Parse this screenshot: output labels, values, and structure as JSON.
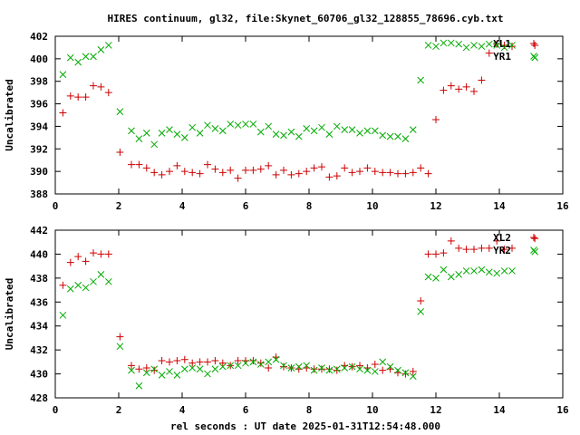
{
  "title": "HIRES continuum, gl32, file:Skynet_60706_gl32_128855_78696.cyb.txt",
  "xlabel": "rel seconds : UT date 2025-01-31T12:54:48.000",
  "colors": {
    "x1": "#cc0000",
    "y1": "#00aa00",
    "axis": "#000000"
  },
  "chart_data": [
    {
      "type": "scatter",
      "ylabel": "Uncalibrated",
      "xlim": [
        0,
        16
      ],
      "ylim": [
        388,
        402
      ],
      "xticks": [
        0,
        2,
        4,
        6,
        8,
        10,
        12,
        14,
        16
      ],
      "yticks": [
        388,
        390,
        392,
        394,
        396,
        398,
        400,
        402
      ],
      "legend_position": "top-right",
      "series": [
        {
          "name": "XL1",
          "marker": "plus",
          "x": [
            0.24,
            0.48,
            0.72,
            0.96,
            1.2,
            1.44,
            1.68,
            2.04,
            2.4,
            2.64,
            2.88,
            3.12,
            3.36,
            3.6,
            3.84,
            4.08,
            4.32,
            4.56,
            4.8,
            5.04,
            5.28,
            5.52,
            5.76,
            6.0,
            6.24,
            6.48,
            6.72,
            6.96,
            7.2,
            7.44,
            7.68,
            7.92,
            8.16,
            8.4,
            8.64,
            8.88,
            9.12,
            9.36,
            9.6,
            9.84,
            10.08,
            10.32,
            10.56,
            10.8,
            11.04,
            11.28,
            11.52,
            11.76,
            12.0,
            12.24,
            12.48,
            12.72,
            12.96,
            13.2,
            13.44,
            13.68,
            13.92,
            14.16,
            14.4,
            15.12
          ],
          "y": [
            395.2,
            396.7,
            396.6,
            396.6,
            397.6,
            397.5,
            397.0,
            391.7,
            390.6,
            390.6,
            390.3,
            389.9,
            389.7,
            390.0,
            390.5,
            390.0,
            389.9,
            389.8,
            390.6,
            390.2,
            389.9,
            390.1,
            389.4,
            390.1,
            390.1,
            390.2,
            390.5,
            389.7,
            390.1,
            389.7,
            389.8,
            390.0,
            390.3,
            390.4,
            389.5,
            389.6,
            390.3,
            389.9,
            390.0,
            390.3,
            390.0,
            389.9,
            389.9,
            389.8,
            389.8,
            389.9,
            390.3,
            389.8,
            394.6,
            397.2,
            397.6,
            397.3,
            397.5,
            397.1,
            398.1,
            400.5,
            401.3,
            401.2,
            401.1,
            401.2
          ]
        },
        {
          "name": "YR1",
          "marker": "cross",
          "x": [
            0.24,
            0.48,
            0.72,
            0.96,
            1.2,
            1.44,
            1.68,
            2.04,
            2.4,
            2.64,
            2.88,
            3.12,
            3.36,
            3.6,
            3.84,
            4.08,
            4.32,
            4.56,
            4.8,
            5.04,
            5.28,
            5.52,
            5.76,
            6.0,
            6.24,
            6.48,
            6.72,
            6.96,
            7.2,
            7.44,
            7.68,
            7.92,
            8.16,
            8.4,
            8.64,
            8.88,
            9.12,
            9.36,
            9.6,
            9.84,
            10.08,
            10.32,
            10.56,
            10.8,
            11.04,
            11.28,
            11.52,
            11.76,
            12.0,
            12.24,
            12.48,
            12.72,
            12.96,
            13.2,
            13.44,
            13.68,
            13.92,
            14.16,
            14.4,
            15.12
          ],
          "y": [
            398.6,
            400.1,
            399.7,
            400.2,
            400.2,
            400.8,
            401.2,
            395.3,
            393.6,
            392.9,
            393.4,
            392.4,
            393.4,
            393.7,
            393.3,
            393.0,
            393.9,
            393.4,
            394.1,
            393.8,
            393.6,
            394.2,
            394.1,
            394.2,
            394.2,
            393.5,
            394.0,
            393.3,
            393.2,
            393.5,
            393.1,
            393.8,
            393.6,
            393.9,
            393.3,
            394.0,
            393.7,
            393.7,
            393.4,
            393.6,
            393.6,
            393.2,
            393.1,
            393.1,
            392.9,
            393.7,
            398.1,
            401.2,
            401.1,
            401.4,
            401.4,
            401.3,
            401.0,
            401.2,
            401.1,
            401.3,
            401.2,
            401.0,
            401.2,
            400.1
          ]
        }
      ]
    },
    {
      "type": "scatter",
      "ylabel": "Uncalibrated",
      "xlim": [
        0,
        16
      ],
      "ylim": [
        428,
        442
      ],
      "xticks": [
        0,
        2,
        4,
        6,
        8,
        10,
        12,
        14,
        16
      ],
      "yticks": [
        428,
        430,
        432,
        434,
        436,
        438,
        440,
        442
      ],
      "legend_position": "top-right",
      "series": [
        {
          "name": "XL2",
          "marker": "plus",
          "x": [
            0.24,
            0.48,
            0.72,
            0.96,
            1.2,
            1.44,
            1.68,
            2.04,
            2.4,
            2.64,
            2.88,
            3.12,
            3.36,
            3.6,
            3.84,
            4.08,
            4.32,
            4.56,
            4.8,
            5.04,
            5.28,
            5.52,
            5.76,
            6.0,
            6.24,
            6.48,
            6.72,
            6.96,
            7.2,
            7.44,
            7.68,
            7.92,
            8.16,
            8.4,
            8.64,
            8.88,
            9.12,
            9.36,
            9.6,
            9.84,
            10.08,
            10.32,
            10.56,
            10.8,
            11.04,
            11.28,
            11.52,
            11.76,
            12.0,
            12.24,
            12.48,
            12.72,
            12.96,
            13.2,
            13.44,
            13.68,
            13.92,
            14.16,
            14.4,
            15.12
          ],
          "y": [
            437.4,
            439.3,
            439.8,
            439.4,
            440.1,
            440.0,
            440.0,
            433.1,
            430.7,
            430.4,
            430.5,
            430.3,
            431.1,
            431.0,
            431.1,
            431.2,
            430.9,
            431.0,
            431.0,
            431.1,
            430.9,
            430.7,
            431.1,
            431.1,
            431.1,
            430.9,
            430.5,
            431.4,
            430.6,
            430.5,
            430.4,
            430.5,
            430.4,
            430.4,
            430.4,
            430.3,
            430.7,
            430.6,
            430.7,
            430.5,
            430.8,
            430.3,
            430.4,
            430.1,
            430.0,
            430.2,
            436.1,
            440.0,
            440.0,
            440.1,
            441.1,
            440.5,
            440.4,
            440.4,
            440.5,
            440.5,
            441.1,
            440.4,
            440.5,
            441.3
          ]
        },
        {
          "name": "YR2",
          "marker": "cross",
          "x": [
            0.24,
            0.48,
            0.72,
            0.96,
            1.2,
            1.44,
            1.68,
            2.04,
            2.4,
            2.64,
            2.88,
            3.12,
            3.36,
            3.6,
            3.84,
            4.08,
            4.32,
            4.56,
            4.8,
            5.04,
            5.28,
            5.52,
            5.76,
            6.0,
            6.24,
            6.48,
            6.72,
            6.96,
            7.2,
            7.44,
            7.68,
            7.92,
            8.16,
            8.4,
            8.64,
            8.88,
            9.12,
            9.36,
            9.6,
            9.84,
            10.08,
            10.32,
            10.56,
            10.8,
            11.04,
            11.28,
            11.52,
            11.76,
            12.0,
            12.24,
            12.48,
            12.72,
            12.96,
            13.2,
            13.44,
            13.68,
            13.92,
            14.16,
            14.4,
            15.12
          ],
          "y": [
            434.9,
            437.1,
            437.4,
            437.2,
            437.7,
            438.3,
            437.7,
            432.3,
            430.3,
            429.0,
            430.1,
            430.4,
            429.9,
            430.2,
            429.9,
            430.4,
            430.5,
            430.4,
            430.0,
            430.4,
            430.6,
            430.7,
            430.7,
            430.9,
            431.0,
            430.8,
            431.0,
            431.2,
            430.7,
            430.5,
            430.6,
            430.7,
            430.3,
            430.5,
            430.3,
            430.4,
            430.5,
            430.6,
            430.4,
            430.3,
            430.2,
            431.0,
            430.6,
            430.3,
            430.1,
            429.8,
            435.2,
            438.1,
            438.0,
            438.7,
            438.1,
            438.3,
            438.6,
            438.6,
            438.7,
            438.5,
            438.4,
            438.6,
            438.6,
            440.2
          ]
        }
      ]
    }
  ]
}
